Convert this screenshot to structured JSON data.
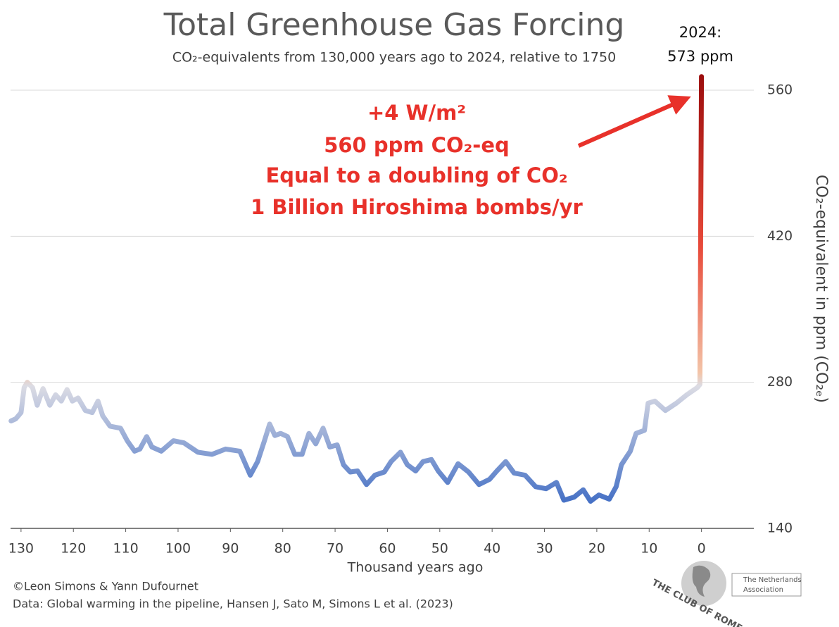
{
  "chart_data": {
    "type": "line",
    "title": "Total Greenhouse Gas Forcing",
    "subtitle": "CO₂-equivalents from 130,000 years ago to 2024, relative to 1750",
    "x_label": "Thousand years ago",
    "y_label": "CO₂-equivalent in ppm (CO₂ₑ)",
    "end_annotation": [
      "2024:",
      "573 ppm"
    ],
    "annotation": [
      "+4 W/m²",
      "560 ppm CO₂-eq",
      "Equal to a doubling of CO₂",
      "1 Billion Hiroshima bombs/yr"
    ],
    "annotation_color": "#e8312a",
    "credits": [
      "©Leon Simons & Yann Dufournet",
      "Data: Global warming in the pipeline, Hansen J, Sato M, Simons L et al. (2023)"
    ],
    "logo": {
      "name": "THE CLUB OF ROME",
      "association": [
        "The Netherlands",
        "Association"
      ]
    },
    "xlim": [
      132,
      -10
    ],
    "ylim": [
      140,
      560
    ],
    "xticks": [
      130,
      120,
      110,
      100,
      90,
      80,
      70,
      60,
      50,
      40,
      30,
      20,
      10,
      0
    ],
    "yticks": [
      140,
      280,
      420,
      560
    ],
    "grid": true,
    "series": [
      {
        "name": "CO₂-equivalent",
        "colors": [
          "#3f6cc4",
          "#dcdce4",
          "#f3c4a8",
          "#e84a3a",
          "#9b0d0d"
        ],
        "x": [
          131.9,
          131,
          130,
          129.4,
          128.8,
          127.8,
          126.9,
          125.8,
          124.5,
          123.4,
          122.3,
          121.2,
          120.2,
          119.1,
          117.7,
          116.4,
          115.3,
          114.4,
          113,
          111,
          109.7,
          108.3,
          107.3,
          106,
          105,
          103.2,
          100.9,
          98.9,
          96.2,
          93.5,
          90.9,
          88.2,
          86.2,
          84.8,
          83.5,
          82.5,
          81.5,
          80.4,
          79.1,
          77.7,
          76.3,
          75,
          73.7,
          72.3,
          71,
          69.6,
          68.4,
          67.1,
          65.7,
          64,
          62.4,
          60.6,
          59.3,
          57.5,
          56.2,
          54.6,
          53.2,
          51.6,
          50.3,
          48.5,
          46.5,
          44.5,
          42.5,
          40.5,
          39.1,
          37.4,
          35.8,
          33.7,
          31.7,
          29.7,
          27.7,
          26.3,
          24.3,
          22.6,
          21.2,
          19.6,
          17.6,
          16.3,
          15.3,
          13.6,
          12.5,
          10.9,
          10.2,
          8.9,
          6.9,
          4.8,
          2.8,
          0.8,
          0.3,
          0
        ],
        "values": [
          243,
          245,
          251,
          275,
          280,
          275,
          258,
          274,
          258,
          268,
          262,
          273,
          262,
          265,
          253,
          251,
          262,
          248,
          238,
          236,
          224,
          214,
          216,
          228,
          218,
          214,
          224,
          222,
          213,
          211,
          216,
          214,
          191,
          204,
          224,
          240,
          229,
          231,
          228,
          211,
          211,
          231,
          221,
          236,
          218,
          220,
          201,
          194,
          195,
          182,
          191,
          194,
          204,
          213,
          201,
          195,
          204,
          206,
          195,
          184,
          202,
          194,
          182,
          187,
          195,
          204,
          193,
          191,
          180,
          178,
          184,
          167,
          170,
          177,
          166,
          172,
          168,
          180,
          201,
          214,
          231,
          234,
          260,
          262,
          253,
          260,
          268,
          275,
          278,
          573
        ]
      }
    ]
  }
}
